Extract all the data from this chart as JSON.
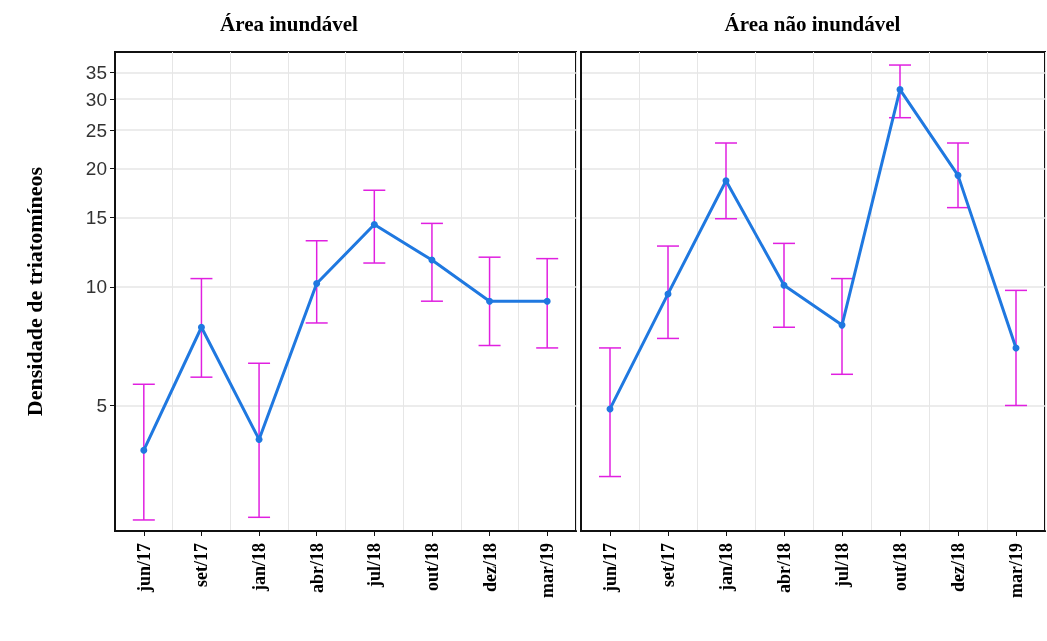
{
  "chart_data": [
    {
      "type": "line",
      "title": "Área inundável",
      "ylabel": "Densidade de triatomíneos",
      "categories": [
        "jun/17",
        "set/17",
        "jan/18",
        "abr/18",
        "jul/18",
        "out/18",
        "dez/18",
        "mar/19"
      ],
      "series": [
        {
          "color": "#1f78e0",
          "values": [
            3.85,
            7.9,
            4.1,
            10.2,
            14.4,
            11.7,
            9.2,
            9.2
          ],
          "errors": [
            [
              2.56,
              5.66
            ],
            [
              5.9,
              10.5
            ],
            [
              2.6,
              6.4
            ],
            [
              8.1,
              13.1
            ],
            [
              11.5,
              17.6
            ],
            [
              9.2,
              14.5
            ],
            [
              7.1,
              11.9
            ],
            [
              7.0,
              11.8
            ]
          ]
        }
      ],
      "ylim": [
        2.4,
        39.5
      ],
      "yticks": [
        5,
        10,
        15,
        20,
        25,
        30,
        35
      ],
      "log": "y",
      "grid": true,
      "marker": "circle",
      "line_style": "solid"
    },
    {
      "type": "line",
      "title": "Área não inundável",
      "categories": [
        "jun/17",
        "set/17",
        "jan/18",
        "abr/18",
        "jul/18",
        "out/18",
        "dez/18",
        "mar/19"
      ],
      "series": [
        {
          "color": "#1f78e0",
          "values": [
            4.9,
            9.6,
            18.6,
            10.1,
            8.0,
            31.7,
            19.2,
            7.0
          ],
          "errors": [
            [
              3.3,
              7.0
            ],
            [
              7.4,
              12.7
            ],
            [
              14.9,
              23.2
            ],
            [
              7.9,
              12.9
            ],
            [
              6.0,
              10.5
            ],
            [
              26.9,
              36.6
            ],
            [
              15.9,
              23.2
            ],
            [
              5.0,
              9.8
            ]
          ]
        }
      ],
      "ylim": [
        2.4,
        39.5
      ],
      "yticks": [
        5,
        10,
        15,
        20,
        25,
        30,
        35
      ],
      "log": "y",
      "grid": true,
      "marker": "circle",
      "line_style": "solid",
      "tick_labels": "x"
    }
  ]
}
